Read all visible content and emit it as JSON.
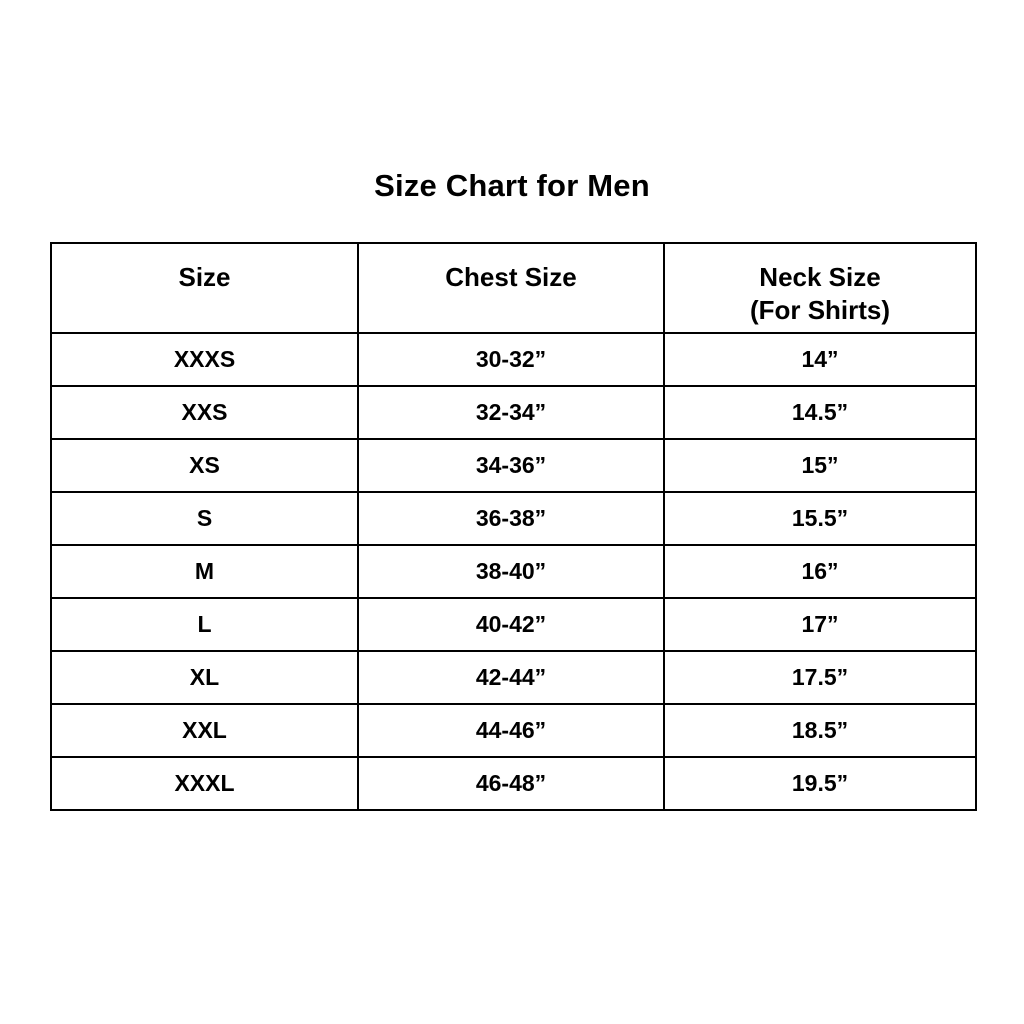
{
  "title": "Size Chart for Men",
  "table": {
    "columns": [
      "Size",
      "Chest Size",
      "Neck Size\n(For Shirts)"
    ],
    "rows": [
      [
        "XXXS",
        "30-32”",
        "14”"
      ],
      [
        "XXS",
        "32-34”",
        "14.5”"
      ],
      [
        "XS",
        "34-36”",
        "15”"
      ],
      [
        "S",
        "36-38”",
        "15.5”"
      ],
      [
        "M",
        "38-40”",
        "16”"
      ],
      [
        "L",
        "40-42”",
        "17”"
      ],
      [
        "XL",
        "42-44”",
        "17.5”"
      ],
      [
        "XXL",
        "44-46”",
        "18.5”"
      ],
      [
        "XXXL",
        "46-48”",
        "19.5”"
      ]
    ]
  },
  "chart_data": {
    "type": "table",
    "title": "Size Chart for Men",
    "columns": [
      "Size",
      "Chest Size",
      "Neck Size (For Shirts)"
    ],
    "rows": [
      {
        "size": "XXXS",
        "chest_size": "30-32”",
        "neck_size": "14”"
      },
      {
        "size": "XXS",
        "chest_size": "32-34”",
        "neck_size": "14.5”"
      },
      {
        "size": "XS",
        "chest_size": "34-36”",
        "neck_size": "15”"
      },
      {
        "size": "S",
        "chest_size": "36-38”",
        "neck_size": "15.5”"
      },
      {
        "size": "M",
        "chest_size": "38-40”",
        "neck_size": "16”"
      },
      {
        "size": "L",
        "chest_size": "40-42”",
        "neck_size": "17”"
      },
      {
        "size": "XL",
        "chest_size": "42-44”",
        "neck_size": "17.5”"
      },
      {
        "size": "XXL",
        "chest_size": "44-46”",
        "neck_size": "18.5”"
      },
      {
        "size": "XXXL",
        "chest_size": "46-48”",
        "neck_size": "19.5”"
      }
    ]
  },
  "colors": {
    "background": "#ffffff",
    "border": "#000000",
    "text": "#000000"
  }
}
